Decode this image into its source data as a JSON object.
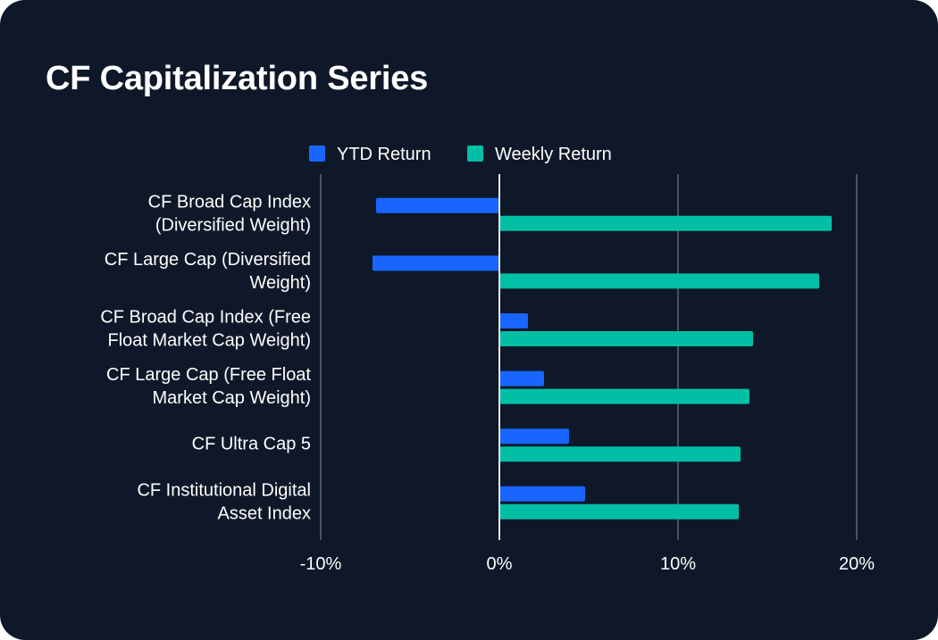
{
  "title": "CF Capitalization Series",
  "colors": {
    "background": "#0f1829",
    "ytd": "#1966ff",
    "weekly": "#00bfa5",
    "grid": "#4a525e",
    "zero_line": "#e6e8eb",
    "text": "#ffffff"
  },
  "chart_data": {
    "type": "bar",
    "orientation": "horizontal",
    "title": "CF Capitalization Series",
    "categories": [
      [
        "CF Broad Cap Index",
        "(Diversified Weight)"
      ],
      [
        "CF Large Cap (Diversified",
        "Weight)"
      ],
      [
        "CF Broad Cap Index (Free",
        "Float Market Cap Weight)"
      ],
      [
        "CF Large Cap (Free Float",
        "Market Cap Weight)"
      ],
      [
        "CF Ultra Cap 5"
      ],
      [
        "CF Institutional Digital",
        "Asset Index"
      ]
    ],
    "series": [
      {
        "name": "YTD Return",
        "color": "#1966ff",
        "values": [
          -6.9,
          -7.1,
          1.6,
          2.5,
          3.9,
          4.8
        ]
      },
      {
        "name": "Weekly Return",
        "color": "#00bfa5",
        "values": [
          18.6,
          17.9,
          14.2,
          14.0,
          13.5,
          13.4
        ]
      }
    ],
    "xlim": [
      -10,
      20
    ],
    "xticks": [
      -10,
      0,
      10,
      20
    ],
    "xtick_labels": [
      "-10%",
      "0%",
      "10%",
      "20%"
    ],
    "xlabel": "",
    "ylabel": "",
    "legend_position": "top-center",
    "grid": "vertical"
  }
}
